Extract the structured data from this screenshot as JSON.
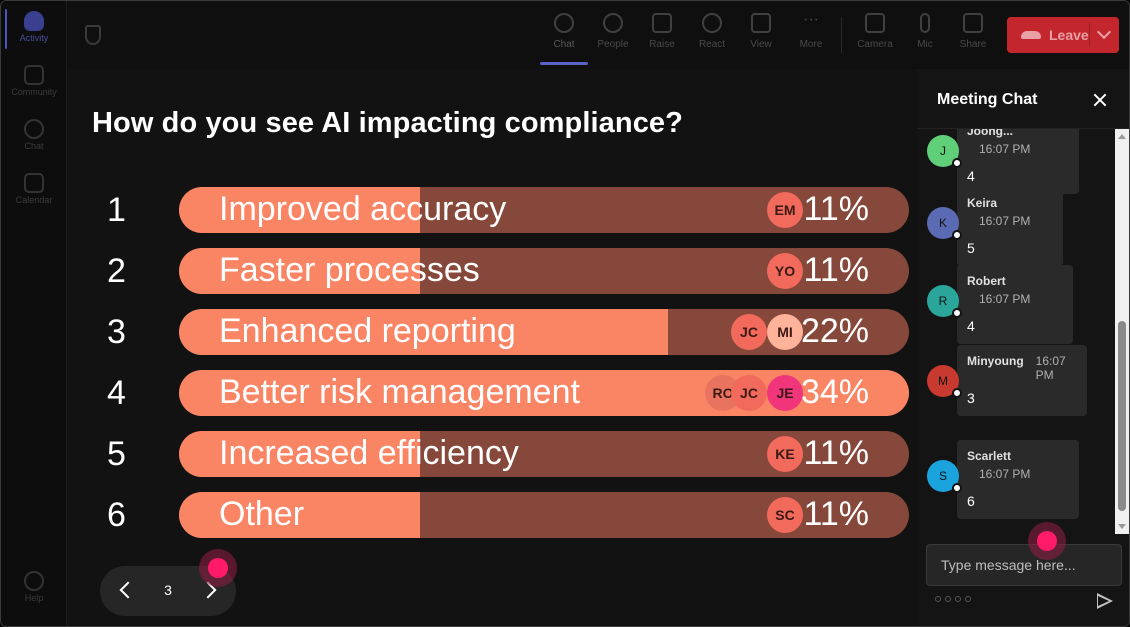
{
  "rail": {
    "items": [
      {
        "label": "Activity",
        "icon": "bell-icon"
      },
      {
        "label": "Community",
        "icon": "community-icon"
      },
      {
        "label": "Chat",
        "icon": "chat-icon"
      },
      {
        "label": "Calendar",
        "icon": "calendar-icon"
      }
    ],
    "help": {
      "label": "Help",
      "icon": "help-icon"
    }
  },
  "toolbar": {
    "buttons": [
      {
        "label": "Chat",
        "icon": "chat-icon"
      },
      {
        "label": "People",
        "icon": "people-icon"
      },
      {
        "label": "Raise",
        "icon": "raise-hand-icon"
      },
      {
        "label": "React",
        "icon": "react-icon"
      },
      {
        "label": "View",
        "icon": "view-icon"
      },
      {
        "label": "More",
        "icon": "more-icon"
      },
      {
        "label": "Camera",
        "icon": "camera-icon"
      },
      {
        "label": "Mic",
        "icon": "mic-icon"
      },
      {
        "label": "Share",
        "icon": "share-icon"
      }
    ],
    "leave_label": "Leave"
  },
  "poll": {
    "question": "How do you see AI impacting compliance?",
    "options": [
      {
        "num": "1",
        "label": "Improved accuracy",
        "percent": "11%",
        "fill": 0.33,
        "voters": [
          "EM"
        ],
        "highlight": false
      },
      {
        "num": "2",
        "label": "Faster processes",
        "percent": "11%",
        "fill": 0.33,
        "voters": [
          "YO"
        ],
        "highlight": false
      },
      {
        "num": "3",
        "label": "Enhanced reporting",
        "percent": "22%",
        "fill": 0.67,
        "voters": [
          "JC",
          "MI"
        ],
        "highlight": false
      },
      {
        "num": "4",
        "label": "Better risk management",
        "percent": "34%",
        "fill": 1.0,
        "voters": [
          "RO",
          "JC",
          "JE"
        ],
        "highlight": true
      },
      {
        "num": "5",
        "label": "Increased efficiency",
        "percent": "11%",
        "fill": 0.33,
        "voters": [
          "KE"
        ],
        "highlight": false
      },
      {
        "num": "6",
        "label": "Other",
        "percent": "11%",
        "fill": 0.33,
        "voters": [
          "SC"
        ],
        "highlight": false
      }
    ],
    "voter_colors": {
      "EM": "#f26a5c",
      "YO": "#f26a5c",
      "JC": "#f26a5c",
      "MI": "#ffb39a",
      "RO": "#e8735f",
      "JE": "#f0357a",
      "KE": "#f26a5c",
      "SC": "#f26a5c"
    },
    "colors": {
      "fill": "#fa8565",
      "track": "#86483a"
    }
  },
  "pager": {
    "page": "3"
  },
  "chat": {
    "title": "Meeting Chat",
    "messages": [
      {
        "initial": "J",
        "name": "Joong...",
        "time": "16:07 PM",
        "text": "4",
        "color": "#5fcf7a"
      },
      {
        "initial": "K",
        "name": "Keira",
        "time": "16:07 PM",
        "text": "5",
        "color": "#5a6bb3"
      },
      {
        "initial": "R",
        "name": "Robert",
        "time": "16:07 PM",
        "text": "4",
        "color": "#2aa59a"
      },
      {
        "initial": "M",
        "name": "Minyoung",
        "time": "16:07 PM",
        "text": "3",
        "color": "#c83a30"
      },
      {
        "initial": "S",
        "name": "Scarlett",
        "time": "16:07 PM",
        "text": "6",
        "color": "#1aa3dc"
      }
    ],
    "input_placeholder": "Type message here..."
  }
}
